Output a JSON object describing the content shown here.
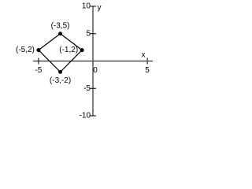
{
  "chart_data": {
    "type": "polygon",
    "x": [
      -3,
      -1,
      -3,
      -5
    ],
    "y": [
      5,
      2,
      -2,
      2
    ],
    "point_labels": [
      "(-3,5)",
      "(-1,2)",
      "(-3,-2)",
      "(-5,2)"
    ],
    "closed": true,
    "color": "#000000",
    "x_label": "x",
    "y_label": "y",
    "xlim": [
      -5.5,
      5.5
    ],
    "ylim": [
      -10,
      10
    ],
    "xticks": [
      -5,
      0,
      5
    ],
    "yticks": [
      -10,
      -5,
      5,
      10
    ]
  }
}
